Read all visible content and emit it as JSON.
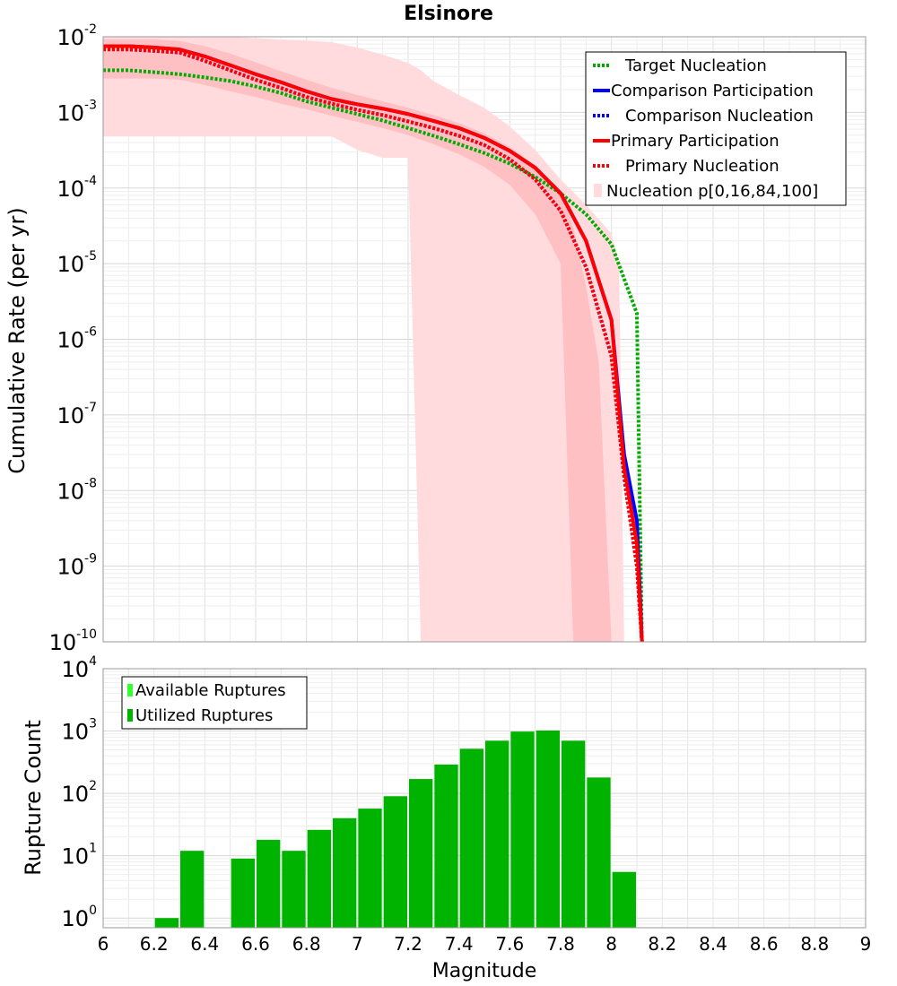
{
  "chart_data": [
    {
      "type": "line",
      "title": "Elsinore",
      "xlabel": "",
      "ylabel": "Cumulative Rate (per yr)",
      "xlim": [
        6,
        9
      ],
      "ylim": [
        1e-10,
        0.01
      ],
      "yscale": "log",
      "grid": true,
      "legend_position": "top-right",
      "y_tick_labels": [
        {
          "base": "10",
          "exp": "-2",
          "value": 0.01
        },
        {
          "base": "10",
          "exp": "-3",
          "value": 0.001
        },
        {
          "base": "10",
          "exp": "-4",
          "value": 0.0001
        },
        {
          "base": "10",
          "exp": "-5",
          "value": 1e-05
        },
        {
          "base": "10",
          "exp": "-6",
          "value": 1e-06
        },
        {
          "base": "10",
          "exp": "-7",
          "value": 1e-07
        },
        {
          "base": "10",
          "exp": "-8",
          "value": 1e-08
        },
        {
          "base": "10",
          "exp": "-9",
          "value": 1e-09
        },
        {
          "base": "10",
          "exp": "-10",
          "value": 1e-10
        }
      ],
      "series": [
        {
          "name": "Target Nucleation",
          "color": "#00aa00",
          "style": "dotted",
          "x": [
            6.0,
            6.1,
            6.2,
            6.3,
            6.4,
            6.5,
            6.6,
            6.7,
            6.8,
            6.9,
            7.0,
            7.1,
            7.2,
            7.3,
            7.4,
            7.5,
            7.6,
            7.7,
            7.8,
            7.9,
            8.0,
            8.1,
            8.12
          ],
          "y": [
            0.0036,
            0.0036,
            0.0034,
            0.0032,
            0.0029,
            0.0026,
            0.0022,
            0.0018,
            0.0014,
            0.00115,
            0.00095,
            0.00078,
            0.00062,
            0.00049,
            0.00038,
            0.00029,
            0.00021,
            0.00014,
            8.5e-05,
            4.5e-05,
            1.8e-05,
            2.2e-06,
            1e-10
          ]
        },
        {
          "name": "Comparison Participation",
          "color": "#0000ff",
          "style": "solid",
          "x": [
            6.0,
            6.1,
            6.2,
            6.3,
            6.4,
            6.5,
            6.6,
            6.7,
            6.8,
            6.9,
            7.0,
            7.1,
            7.2,
            7.3,
            7.4,
            7.5,
            7.6,
            7.7,
            7.8,
            7.9,
            8.0,
            8.05,
            8.1,
            8.12
          ],
          "y": [
            0.0075,
            0.0075,
            0.0072,
            0.0068,
            0.0055,
            0.0042,
            0.0032,
            0.0025,
            0.0019,
            0.0015,
            0.00128,
            0.00112,
            0.00095,
            0.00077,
            0.00062,
            0.00046,
            0.00031,
            0.000185,
            8.5e-05,
            2e-05,
            1.8e-06,
            3e-08,
            4e-09,
            1e-10
          ]
        },
        {
          "name": "Comparison Nucleation",
          "color": "#0000ff",
          "style": "dotted",
          "x": [
            6.0,
            6.1,
            6.2,
            6.3,
            6.4,
            6.5,
            6.6,
            6.7,
            6.8,
            6.9,
            7.0,
            7.1,
            7.2,
            7.3,
            7.4,
            7.5,
            7.6,
            7.7,
            7.8,
            7.9,
            8.0,
            8.05,
            8.1,
            8.12
          ],
          "y": [
            0.0068,
            0.0068,
            0.0065,
            0.0062,
            0.0048,
            0.0036,
            0.0027,
            0.0021,
            0.0016,
            0.0013,
            0.00108,
            0.00092,
            0.00076,
            0.00062,
            0.00049,
            0.00037,
            0.00024,
            0.00013,
            5e-05,
            9e-06,
            6e-07,
            1.5e-08,
            1e-09,
            1e-10
          ]
        },
        {
          "name": "Primary Participation",
          "color": "#ff0000",
          "style": "solid",
          "x": [
            6.0,
            6.1,
            6.2,
            6.3,
            6.4,
            6.5,
            6.6,
            6.7,
            6.8,
            6.9,
            7.0,
            7.1,
            7.2,
            7.3,
            7.4,
            7.5,
            7.6,
            7.7,
            7.8,
            7.9,
            8.0,
            8.05,
            8.1,
            8.12
          ],
          "y": [
            0.0075,
            0.0075,
            0.0072,
            0.0068,
            0.0055,
            0.0042,
            0.0032,
            0.0025,
            0.0019,
            0.0015,
            0.00128,
            0.00112,
            0.00095,
            0.00077,
            0.00062,
            0.00046,
            0.00031,
            0.000185,
            8.5e-05,
            2e-05,
            1.8e-06,
            2e-08,
            2e-09,
            1e-10
          ]
        },
        {
          "name": "Primary Nucleation",
          "color": "#ff0000",
          "style": "dotted",
          "x": [
            6.0,
            6.1,
            6.2,
            6.3,
            6.4,
            6.5,
            6.6,
            6.7,
            6.8,
            6.9,
            7.0,
            7.1,
            7.2,
            7.3,
            7.4,
            7.5,
            7.6,
            7.7,
            7.8,
            7.9,
            8.0,
            8.05,
            8.1,
            8.12
          ],
          "y": [
            0.0068,
            0.0068,
            0.0065,
            0.0062,
            0.0048,
            0.0036,
            0.0027,
            0.0021,
            0.0016,
            0.0013,
            0.00108,
            0.00092,
            0.00076,
            0.00062,
            0.00049,
            0.00037,
            0.00024,
            0.00013,
            5e-05,
            9e-06,
            6e-07,
            1.5e-08,
            1e-09,
            1e-10
          ]
        }
      ],
      "bands": [
        {
          "name": "Nucleation p[0,16,84,100]",
          "color": "#ffdbde",
          "x": [
            6.0,
            6.5,
            6.9,
            7.0,
            7.1,
            7.2,
            7.25,
            7.3,
            7.4,
            7.5,
            7.6,
            7.7,
            7.8,
            7.9,
            8.0,
            8.03,
            8.05
          ],
          "lower": [
            0.00048,
            0.00048,
            0.00048,
            0.00032,
            0.00025,
            0.00025,
            1e-10,
            1e-10,
            1e-10,
            1e-10,
            1e-10,
            1e-10,
            1e-10,
            1e-10,
            1e-10,
            1e-10,
            1e-10
          ],
          "upper": [
            0.01,
            0.01,
            0.0085,
            0.0072,
            0.0058,
            0.0045,
            0.0036,
            0.0026,
            0.0017,
            0.00115,
            0.00065,
            0.00032,
            0.00013,
            6e-05,
            2.5e-05,
            1e-05,
            1e-10
          ]
        },
        {
          "name": "",
          "color": "#ffc0c4",
          "x": [
            6.0,
            6.2,
            6.3,
            6.4,
            6.5,
            6.6,
            6.7,
            6.8,
            6.9,
            7.0,
            7.1,
            7.2,
            7.3,
            7.4,
            7.5,
            7.6,
            7.7,
            7.8,
            7.82,
            7.85,
            7.9,
            7.95,
            8.0
          ],
          "lower": [
            0.0028,
            0.0028,
            0.0027,
            0.0023,
            0.0019,
            0.0016,
            0.0013,
            0.0011,
            0.0009,
            0.00075,
            0.00062,
            0.0005,
            0.00038,
            0.00028,
            0.00019,
            0.00011,
            4.5e-05,
            1e-05,
            1e-07,
            1e-10,
            1e-10,
            1e-10,
            1e-10
          ],
          "upper": [
            0.0092,
            0.0092,
            0.0088,
            0.0075,
            0.006,
            0.0046,
            0.0035,
            0.0027,
            0.0021,
            0.0017,
            0.0014,
            0.00115,
            0.00092,
            0.00072,
            0.00053,
            0.00035,
            0.0002,
            8.5e-05,
            6e-05,
            3e-05,
            5e-06,
            5e-07,
            1e-10
          ]
        }
      ]
    },
    {
      "type": "bar",
      "title": "",
      "xlabel": "Magnitude",
      "ylabel": "Rupture Count",
      "xlim": [
        6,
        9
      ],
      "ylim": [
        0.7,
        10000
      ],
      "yscale": "log",
      "grid": true,
      "legend_position": "top-left",
      "x_ticks": [
        "6",
        "6.2",
        "6.4",
        "6.6",
        "6.8",
        "7",
        "7.2",
        "7.4",
        "7.6",
        "7.8",
        "8",
        "8.2",
        "8.4",
        "8.6",
        "8.8",
        "9"
      ],
      "y_tick_labels": [
        {
          "base": "10",
          "exp": "4",
          "value": 10000
        },
        {
          "base": "10",
          "exp": "3",
          "value": 1000
        },
        {
          "base": "10",
          "exp": "2",
          "value": 100
        },
        {
          "base": "10",
          "exp": "1",
          "value": 10
        },
        {
          "base": "10",
          "exp": "0",
          "value": 1
        }
      ],
      "bin_width": 0.1,
      "series": [
        {
          "name": "Available Ruptures",
          "color": "#33ff33",
          "x": [],
          "values": []
        },
        {
          "name": "Utilized Ruptures",
          "color": "#00b300",
          "x": [
            6.25,
            6.35,
            6.55,
            6.65,
            6.75,
            6.85,
            6.95,
            7.05,
            7.15,
            7.25,
            7.35,
            7.45,
            7.55,
            7.65,
            7.75,
            7.85,
            7.95,
            8.05
          ],
          "values": [
            1,
            12,
            9,
            18,
            12,
            26,
            40,
            57,
            90,
            170,
            290,
            520,
            700,
            980,
            1020,
            700,
            180,
            5.5
          ]
        }
      ]
    }
  ]
}
